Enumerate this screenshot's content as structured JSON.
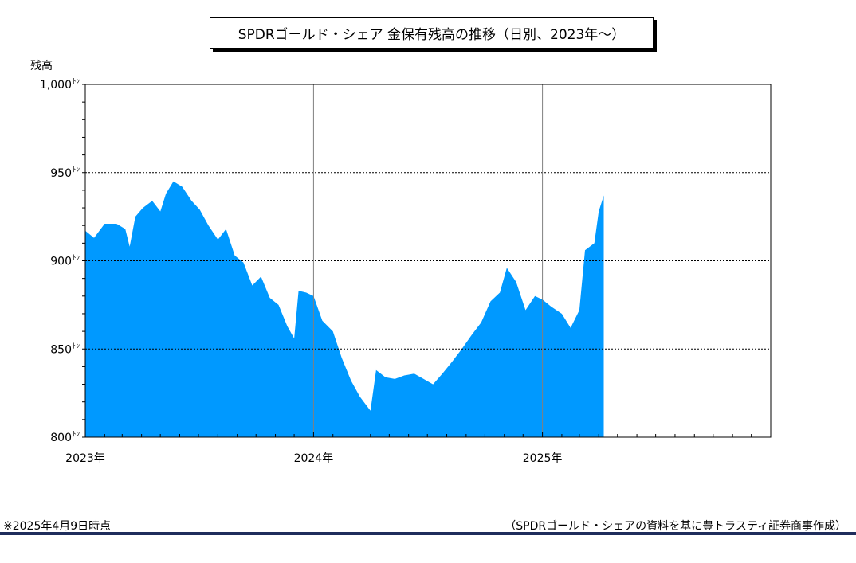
{
  "colors": {
    "area_fill": "#0099ff",
    "bottom_rule": "#1f2d5c"
  },
  "chart_data": {
    "type": "area",
    "title": "SPDRゴールド・シェア 金保有残高の推移（日別、2023年～）",
    "ylabel": "残高",
    "xlabel": "",
    "ylim": [
      800,
      1000
    ],
    "xlim": [
      "2023-01-01",
      "2025-12-31"
    ],
    "y_ticks": [
      {
        "value": 1000,
        "label": "1,000"
      },
      {
        "value": 950,
        "label": "950"
      },
      {
        "value": 900,
        "label": "900"
      },
      {
        "value": 850,
        "label": "850"
      },
      {
        "value": 800,
        "label": "800"
      }
    ],
    "y_unit_suffix": "ﾄﾝ",
    "x_ticks": [
      {
        "value": "2023-01-01",
        "label": "2023年"
      },
      {
        "value": "2024-01-01",
        "label": "2024年"
      },
      {
        "value": "2025-01-01",
        "label": "2025年"
      }
    ],
    "grid": {
      "horizontal": "dotted",
      "vertical_year": "solid"
    },
    "legend": "none",
    "series": [
      {
        "points": [
          [
            "2023-01-01",
            917
          ],
          [
            "2023-01-15",
            913
          ],
          [
            "2023-02-01",
            921
          ],
          [
            "2023-02-20",
            921
          ],
          [
            "2023-03-06",
            918
          ],
          [
            "2023-03-13",
            908
          ],
          [
            "2023-03-22",
            925
          ],
          [
            "2023-04-03",
            930
          ],
          [
            "2023-04-18",
            934
          ],
          [
            "2023-05-01",
            928
          ],
          [
            "2023-05-10",
            938
          ],
          [
            "2023-05-22",
            945
          ],
          [
            "2023-06-05",
            942
          ],
          [
            "2023-06-20",
            934
          ],
          [
            "2023-07-03",
            929
          ],
          [
            "2023-07-17",
            920
          ],
          [
            "2023-08-01",
            912
          ],
          [
            "2023-08-14",
            918
          ],
          [
            "2023-08-28",
            903
          ],
          [
            "2023-09-11",
            899
          ],
          [
            "2023-09-25",
            886
          ],
          [
            "2023-10-09",
            891
          ],
          [
            "2023-10-23",
            879
          ],
          [
            "2023-11-06",
            875
          ],
          [
            "2023-11-20",
            863
          ],
          [
            "2023-12-01",
            856
          ],
          [
            "2023-12-08",
            883
          ],
          [
            "2023-12-20",
            882
          ],
          [
            "2024-01-01",
            880
          ],
          [
            "2024-01-15",
            866
          ],
          [
            "2024-02-01",
            860
          ],
          [
            "2024-02-15",
            845
          ],
          [
            "2024-03-01",
            832
          ],
          [
            "2024-03-15",
            823
          ],
          [
            "2024-04-01",
            815
          ],
          [
            "2024-04-10",
            838
          ],
          [
            "2024-04-25",
            834
          ],
          [
            "2024-05-10",
            833
          ],
          [
            "2024-05-25",
            835
          ],
          [
            "2024-06-10",
            836
          ],
          [
            "2024-06-25",
            833
          ],
          [
            "2024-07-10",
            830
          ],
          [
            "2024-07-25",
            836
          ],
          [
            "2024-08-10",
            843
          ],
          [
            "2024-08-25",
            850
          ],
          [
            "2024-09-10",
            858
          ],
          [
            "2024-09-25",
            865
          ],
          [
            "2024-10-10",
            877
          ],
          [
            "2024-10-25",
            882
          ],
          [
            "2024-11-05",
            896
          ],
          [
            "2024-11-20",
            888
          ],
          [
            "2024-12-05",
            872
          ],
          [
            "2024-12-20",
            880
          ],
          [
            "2025-01-01",
            878
          ],
          [
            "2025-01-15",
            874
          ],
          [
            "2025-02-01",
            870
          ],
          [
            "2025-02-15",
            862
          ],
          [
            "2025-03-01",
            872
          ],
          [
            "2025-03-10",
            906
          ],
          [
            "2025-03-25",
            910
          ],
          [
            "2025-04-01",
            928
          ],
          [
            "2025-04-09",
            937
          ]
        ]
      }
    ]
  },
  "notes": {
    "footnote": "※2025年4月9日時点",
    "source": "（SPDRゴールド・シェアの資料を基に豊トラスティ証券商事作成）"
  }
}
